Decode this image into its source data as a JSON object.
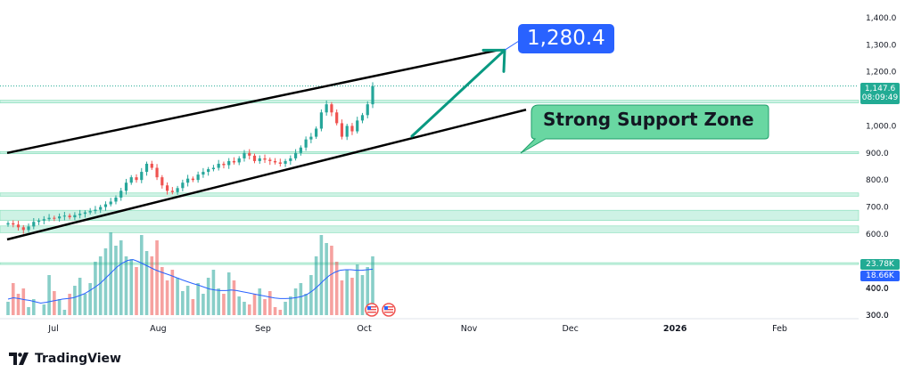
{
  "chart_data": {
    "type": "candlestick",
    "price_axis": {
      "ticks": [
        1400,
        1300,
        1200,
        1100,
        1000,
        900,
        800,
        700,
        600,
        500,
        400,
        300
      ],
      "tick_labels": [
        "1,400.0",
        "1,300.0",
        "1,200.0",
        "",
        "1,000.0",
        "900.0",
        "800.0",
        "700.0",
        "600.0",
        "",
        "400.0",
        "300.0"
      ]
    },
    "time_axis": {
      "labels": [
        {
          "label": "Jul",
          "date": "2025-07-01",
          "bold": false
        },
        {
          "label": "Aug",
          "date": "2025-08-01",
          "bold": false
        },
        {
          "label": "Sep",
          "date": "2025-09-01",
          "bold": false
        },
        {
          "label": "Oct",
          "date": "2025-10-01",
          "bold": false
        },
        {
          "label": "Nov",
          "date": "2025-11-01",
          "bold": false
        },
        {
          "label": "Dec",
          "date": "2025-12-01",
          "bold": false
        },
        {
          "label": "2026",
          "date": "2026-01-01",
          "bold": true
        },
        {
          "label": "Feb",
          "date": "2026-02-01",
          "bold": false
        }
      ]
    },
    "candles_close": [
      640,
      635,
      625,
      615,
      628,
      645,
      650,
      655,
      660,
      658,
      665,
      668,
      662,
      670,
      675,
      680,
      685,
      690,
      700,
      710,
      720,
      735,
      760,
      790,
      810,
      800,
      830,
      860,
      845,
      810,
      780,
      760,
      755,
      770,
      790,
      805,
      800,
      820,
      830,
      840,
      845,
      860,
      855,
      870,
      865,
      880,
      900,
      890,
      870,
      880,
      875,
      870,
      865,
      860,
      870,
      880,
      900,
      920,
      950,
      960,
      990,
      1050,
      1080,
      1050,
      1010,
      960,
      1000,
      980,
      1020,
      1040,
      1080,
      1147.6
    ],
    "volume_axis": {
      "ticks": [
        300,
        400
      ],
      "tick_labels": [
        "300.0",
        "400.0"
      ]
    },
    "volume_bars": [
      350,
      420,
      380,
      400,
      330,
      360,
      300,
      340,
      450,
      390,
      360,
      320,
      380,
      410,
      440,
      380,
      420,
      500,
      520,
      550,
      610,
      560,
      580,
      520,
      510,
      480,
      600,
      540,
      520,
      580,
      480,
      430,
      470,
      440,
      390,
      410,
      360,
      420,
      380,
      440,
      470,
      400,
      380,
      460,
      430,
      370,
      350,
      340,
      380,
      400,
      360,
      390,
      330,
      320,
      350,
      370,
      400,
      420,
      380,
      450,
      520,
      600,
      570,
      560,
      500,
      430,
      470,
      440,
      490,
      450,
      480,
      520
    ],
    "volume_ma": [
      360,
      365,
      362,
      358,
      355,
      350,
      345,
      348,
      352,
      356,
      360,
      362,
      365,
      372,
      380,
      392,
      405,
      420,
      440,
      460,
      480,
      495,
      505,
      508,
      500,
      490,
      480,
      470,
      462,
      455,
      448,
      440,
      432,
      425,
      418,
      412,
      405,
      398,
      394,
      392,
      392,
      394,
      392,
      388,
      384,
      380,
      376,
      372,
      368,
      364,
      362,
      362,
      363,
      366,
      370,
      378,
      392,
      410,
      430,
      448,
      460,
      468,
      470,
      470,
      468,
      468,
      470,
      472
    ],
    "last_price": {
      "value": 1147.6,
      "label": "1,147.6",
      "countdown": "08:09:49",
      "color": "#22ab94"
    },
    "volume_last": {
      "value": 23.78,
      "label": "23.78K",
      "color": "#22ab94"
    },
    "volume_ma_last": {
      "value": 18.66,
      "label": "18.66K",
      "color": "#2962ff"
    },
    "channel_upper": [
      [
        0,
        900
      ],
      [
        560,
        1280
      ]
    ],
    "channel_lower": [
      [
        0,
        580
      ],
      [
        590,
        1060
      ]
    ],
    "arrow_target": {
      "label": "1,280.4",
      "value": 1280.4
    },
    "support_label": "Strong Support Zone",
    "support_zones": [
      {
        "from": 1085,
        "to": 1095
      },
      {
        "from": 897,
        "to": 905
      },
      {
        "from": 740,
        "to": 752
      },
      {
        "from": 650,
        "to": 688
      },
      {
        "from": 605,
        "to": 630
      },
      {
        "from": 488,
        "to": 494
      }
    ],
    "colors": {
      "up": "#26a69a",
      "down": "#ef5350",
      "up_volume": "#26a69a",
      "down_volume": "#ef5350",
      "zone": "#a5e8cf",
      "target_box": "#2962ff",
      "support_box": "#69d7a2"
    },
    "grid": false
  },
  "brand": {
    "name": "TradingView",
    "icon": "tradingview-logo-icon"
  }
}
